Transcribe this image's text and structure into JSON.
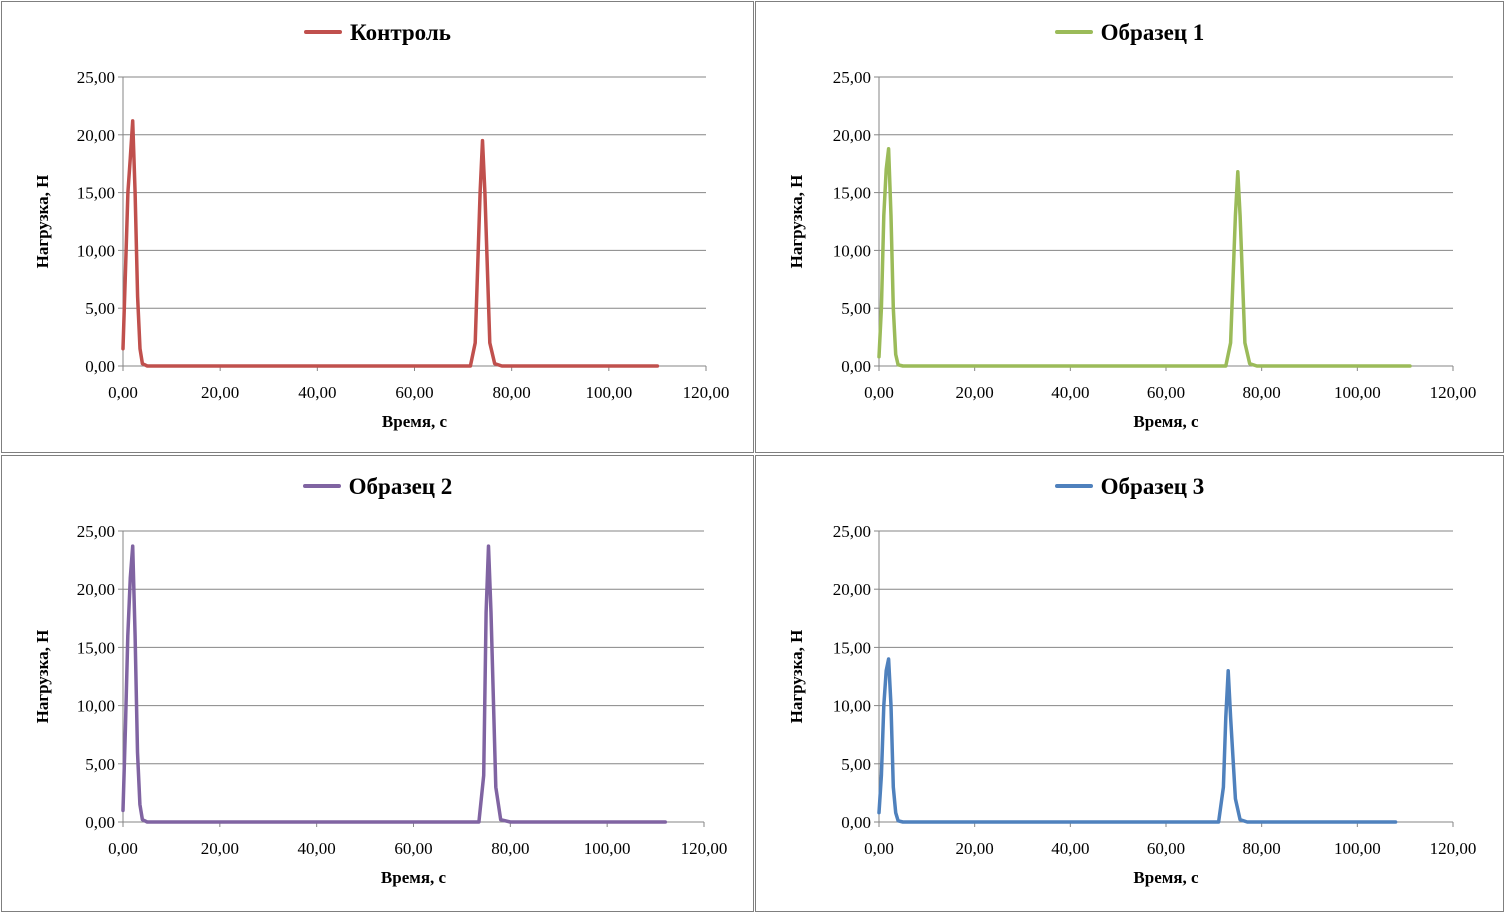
{
  "chart_data": [
    {
      "type": "line",
      "series": [
        {
          "name": "Контроль",
          "color": "#c0504d",
          "x": [
            0,
            0.5,
            1,
            1.5,
            2,
            2.5,
            3,
            3.5,
            4,
            5,
            10,
            70,
            71.5,
            72.5,
            73.5,
            74,
            74.5,
            75.5,
            76.5,
            78,
            90,
            110
          ],
          "y": [
            1.5,
            8,
            15,
            18,
            21.2,
            15,
            6,
            1.5,
            0.2,
            0,
            0,
            0,
            0,
            2,
            15,
            19.5,
            15,
            2,
            0.2,
            0,
            0,
            0
          ]
        }
      ],
      "xlabel": "Время, с",
      "ylabel": "Нагрузка, Н",
      "xlim": [
        0,
        120
      ],
      "ylim": [
        0,
        25
      ],
      "xticks": [
        "0,00",
        "20,00",
        "40,00",
        "60,00",
        "80,00",
        "100,00",
        "120,00"
      ],
      "yticks": [
        "0,00",
        "5,00",
        "10,00",
        "15,00",
        "20,00",
        "25,00"
      ],
      "grid": "horizontal",
      "legend": "top"
    },
    {
      "type": "line",
      "series": [
        {
          "name": "Образец 1",
          "color": "#9bbb59",
          "x": [
            0,
            0.5,
            1,
            1.5,
            2,
            2.5,
            3,
            3.5,
            4,
            5,
            10,
            71,
            72.5,
            73.5,
            74.5,
            75,
            75.5,
            76.5,
            77.5,
            79,
            90,
            111
          ],
          "y": [
            0.8,
            5,
            13,
            17,
            18.8,
            13,
            5,
            1,
            0.1,
            0,
            0,
            0,
            0,
            2,
            13,
            16.8,
            13,
            2,
            0.2,
            0,
            0,
            0
          ]
        }
      ],
      "xlabel": "Время, с",
      "ylabel": "Нагрузка, Н",
      "xlim": [
        0,
        120
      ],
      "ylim": [
        0,
        25
      ],
      "xticks": [
        "0,00",
        "20,00",
        "40,00",
        "60,00",
        "80,00",
        "100,00",
        "120,00"
      ],
      "yticks": [
        "0,00",
        "5,00",
        "10,00",
        "15,00",
        "20,00",
        "25,00"
      ],
      "grid": "horizontal",
      "legend": "top"
    },
    {
      "type": "line",
      "series": [
        {
          "name": "Образец 2",
          "color": "#8064a2",
          "x": [
            0,
            0.5,
            1,
            1.5,
            2,
            2.5,
            3,
            3.5,
            4,
            5,
            10,
            72,
            73.5,
            74.5,
            75,
            75.5,
            76,
            77,
            78,
            80,
            90,
            112
          ],
          "y": [
            1,
            8,
            16,
            21,
            23.7,
            16,
            6,
            1.5,
            0.2,
            0,
            0,
            0,
            0,
            4,
            18,
            23.7,
            18,
            3,
            0.2,
            0,
            0,
            0
          ]
        }
      ],
      "xlabel": "Время, с",
      "ylabel": "Нагрузка, Н",
      "xlim": [
        0,
        120
      ],
      "ylim": [
        0,
        25
      ],
      "xticks": [
        "0,00",
        "20,00",
        "40,00",
        "60,00",
        "80,00",
        "100,00",
        "120,00"
      ],
      "yticks": [
        "0,00",
        "5,00",
        "10,00",
        "15,00",
        "20,00",
        "25,00"
      ],
      "grid": "horizontal",
      "legend": "top"
    },
    {
      "type": "line",
      "series": [
        {
          "name": "Образец 3",
          "color": "#4f81bd",
          "x": [
            0,
            0.5,
            1,
            1.5,
            2,
            2.5,
            3,
            3.5,
            4,
            5,
            10,
            70,
            71,
            72,
            72.5,
            73,
            73.5,
            74.5,
            75.5,
            77,
            90,
            108
          ],
          "y": [
            0.8,
            4,
            10,
            13,
            14,
            10,
            3,
            0.8,
            0.1,
            0,
            0,
            0,
            0,
            3,
            9,
            13,
            9,
            2,
            0.2,
            0,
            0,
            0
          ]
        }
      ],
      "xlabel": "Время, с",
      "ylabel": "Нагрузка, Н",
      "xlim": [
        0,
        120
      ],
      "ylim": [
        0,
        25
      ],
      "xticks": [
        "0,00",
        "20,00",
        "40,00",
        "60,00",
        "80,00",
        "100,00",
        "120,00"
      ],
      "yticks": [
        "0,00",
        "5,00",
        "10,00",
        "15,00",
        "20,00",
        "25,00"
      ],
      "grid": "horizontal",
      "legend": "top"
    }
  ]
}
